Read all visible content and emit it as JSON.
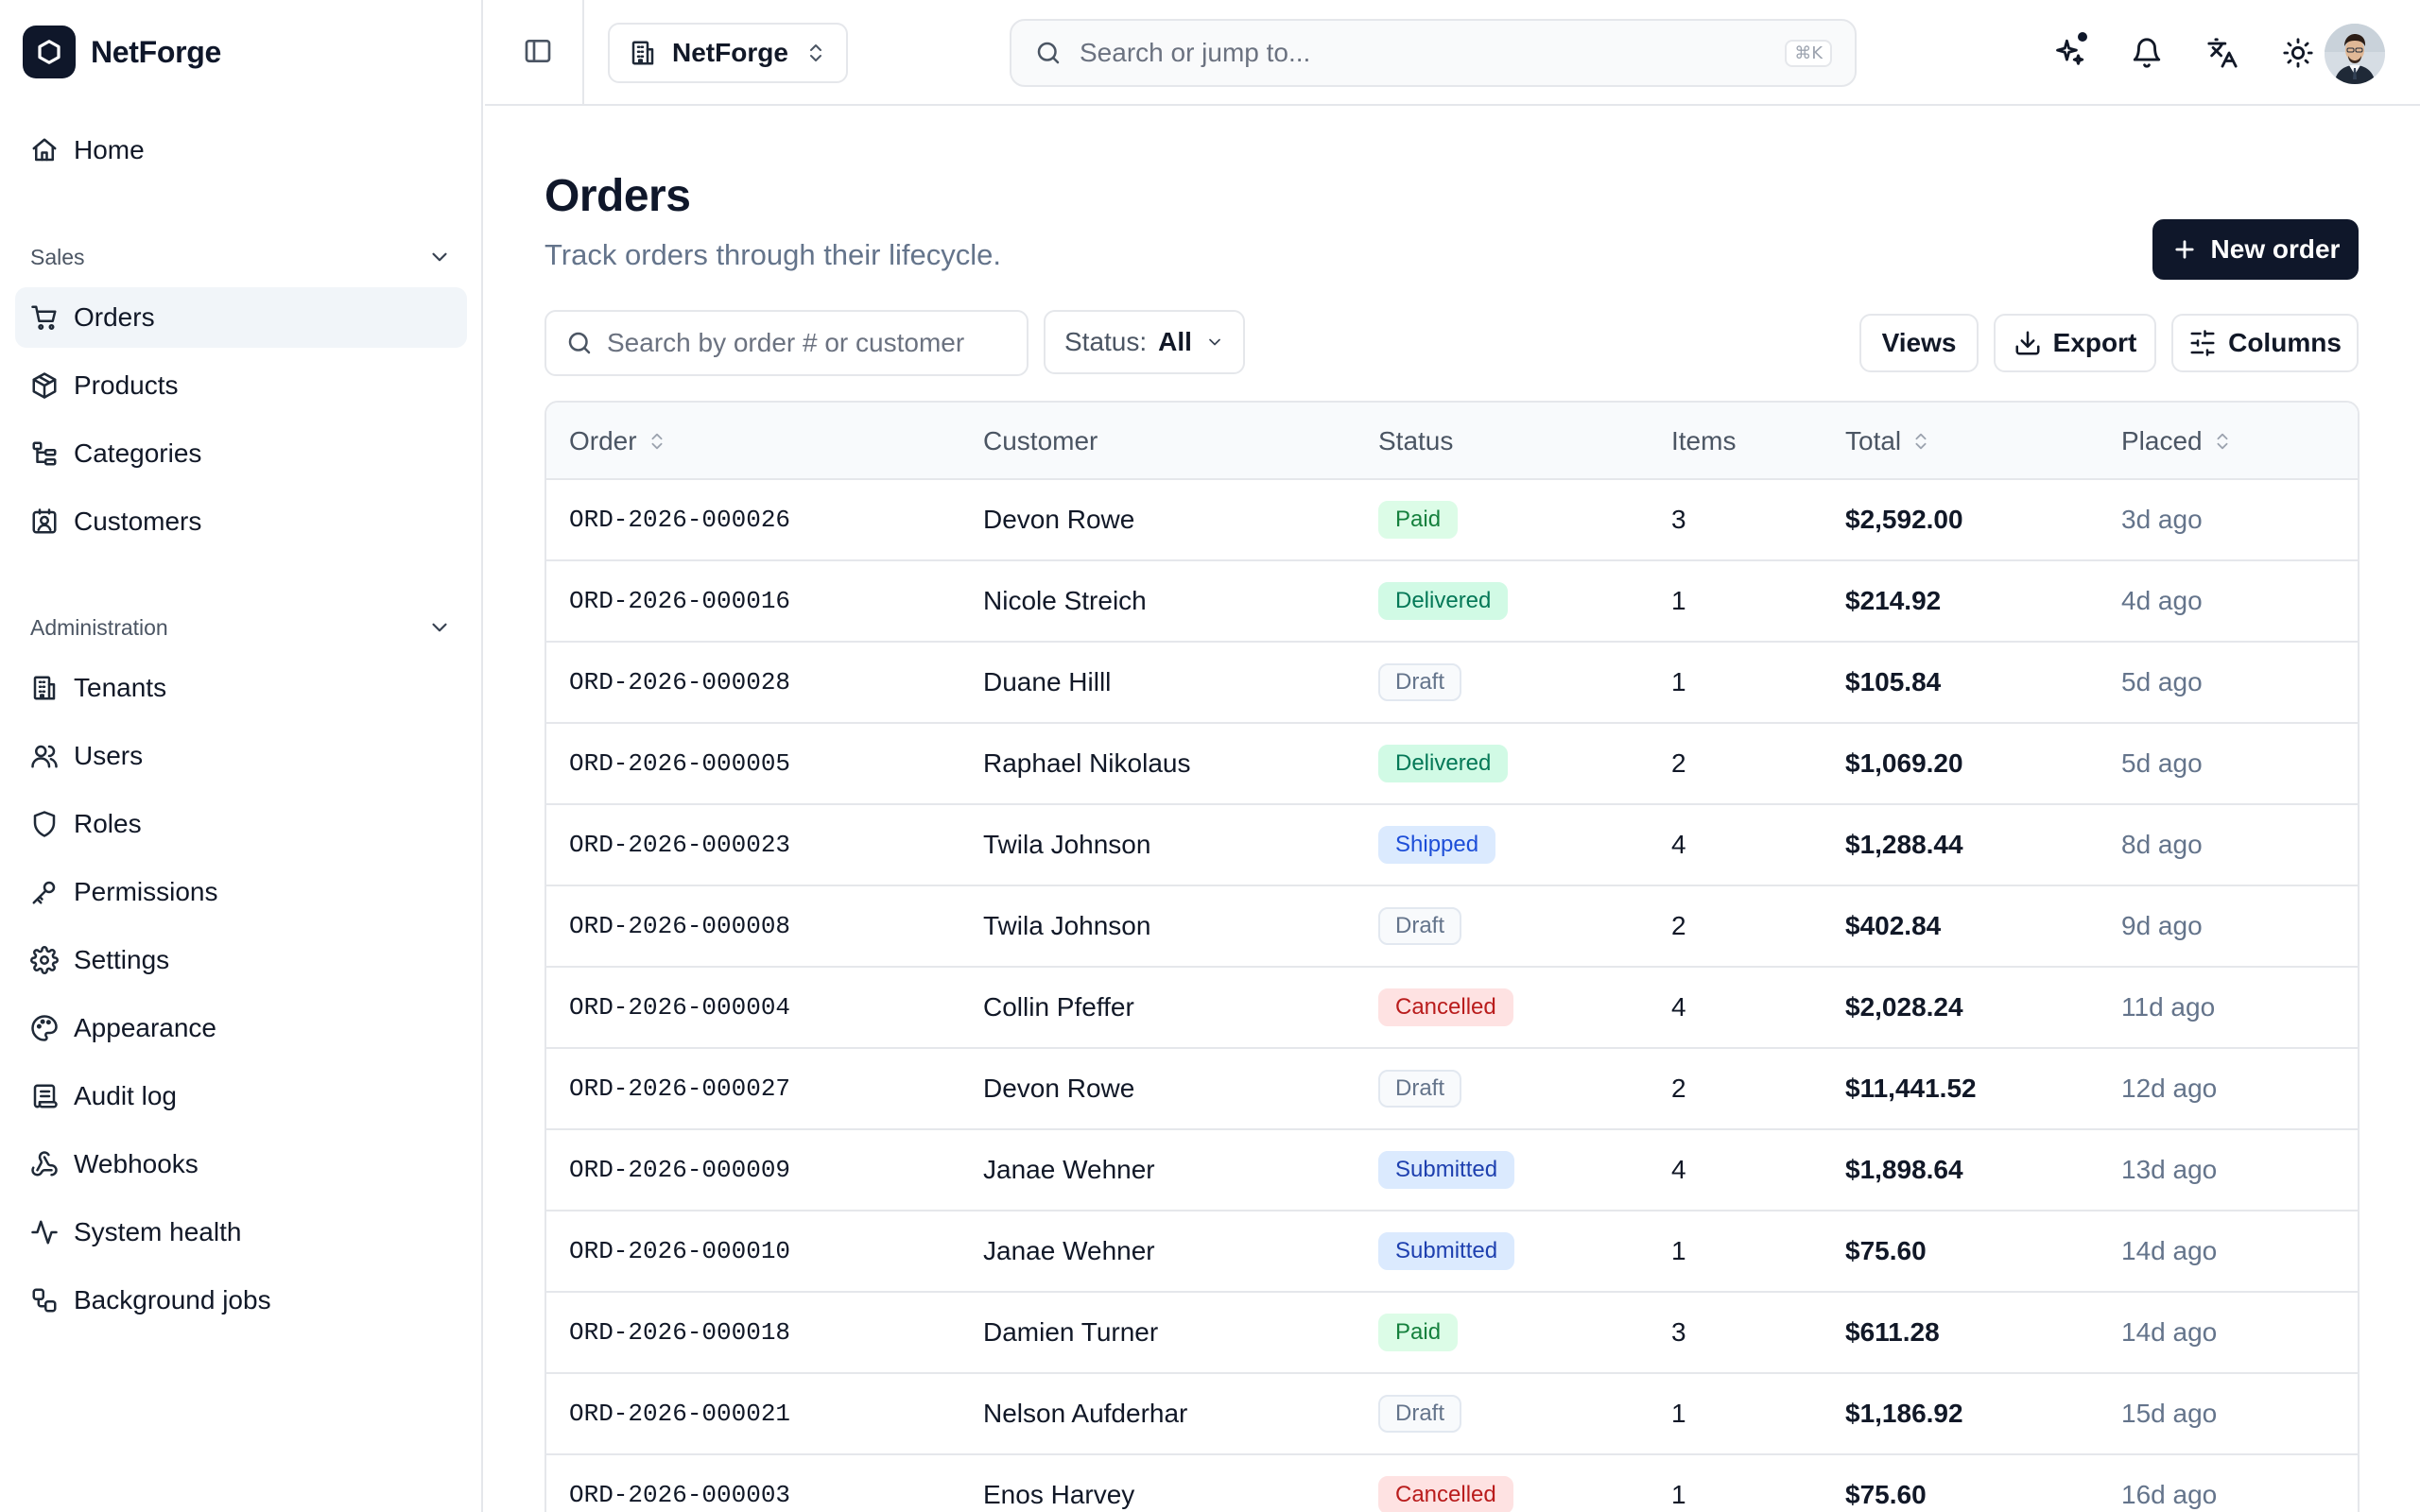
{
  "brand": {
    "name": "NetForge"
  },
  "sidebar": {
    "home": {
      "label": "Home",
      "icon": "home-icon"
    },
    "sales": {
      "title": "Sales",
      "items": [
        {
          "label": "Orders",
          "icon": "cart-icon",
          "active": true
        },
        {
          "label": "Products",
          "icon": "box-icon"
        },
        {
          "label": "Categories",
          "icon": "tree-icon"
        },
        {
          "label": "Customers",
          "icon": "contact-icon"
        }
      ]
    },
    "administration": {
      "title": "Administration",
      "items": [
        {
          "label": "Tenants",
          "icon": "building-icon"
        },
        {
          "label": "Users",
          "icon": "users-icon"
        },
        {
          "label": "Roles",
          "icon": "shield-icon"
        },
        {
          "label": "Permissions",
          "icon": "key-icon"
        },
        {
          "label": "Settings",
          "icon": "gear-icon"
        },
        {
          "label": "Appearance",
          "icon": "palette-icon"
        },
        {
          "label": "Audit log",
          "icon": "scroll-icon"
        },
        {
          "label": "Webhooks",
          "icon": "webhook-icon"
        },
        {
          "label": "System health",
          "icon": "activity-icon"
        },
        {
          "label": "Background jobs",
          "icon": "workflow-icon"
        }
      ]
    }
  },
  "topbar": {
    "tenant": "NetForge",
    "search_placeholder": "Search or jump to...",
    "search_shortcut": "⌘K",
    "icons": [
      "sparkles-icon",
      "bell-icon",
      "languages-icon",
      "sun-icon",
      "avatar"
    ]
  },
  "page": {
    "title": "Orders",
    "subtitle": "Track orders through their lifecycle.",
    "new_button": "New order",
    "search_placeholder": "Search by order # or customer",
    "status_filter_label": "Status:",
    "status_filter_value": "All",
    "views_button": "Views",
    "export_button": "Export",
    "columns_button": "Columns"
  },
  "table": {
    "columns": [
      "Order",
      "Customer",
      "Status",
      "Items",
      "Total",
      "Placed"
    ],
    "rows": [
      {
        "order": "ORD-2026-000026",
        "customer": "Devon Rowe",
        "status": "Paid",
        "items": "3",
        "total": "$2,592.00",
        "placed": "3d ago"
      },
      {
        "order": "ORD-2026-000016",
        "customer": "Nicole Streich",
        "status": "Delivered",
        "items": "1",
        "total": "$214.92",
        "placed": "4d ago"
      },
      {
        "order": "ORD-2026-000028",
        "customer": "Duane Hilll",
        "status": "Draft",
        "items": "1",
        "total": "$105.84",
        "placed": "5d ago"
      },
      {
        "order": "ORD-2026-000005",
        "customer": "Raphael Nikolaus",
        "status": "Delivered",
        "items": "2",
        "total": "$1,069.20",
        "placed": "5d ago"
      },
      {
        "order": "ORD-2026-000023",
        "customer": "Twila Johnson",
        "status": "Shipped",
        "items": "4",
        "total": "$1,288.44",
        "placed": "8d ago"
      },
      {
        "order": "ORD-2026-000008",
        "customer": "Twila Johnson",
        "status": "Draft",
        "items": "2",
        "total": "$402.84",
        "placed": "9d ago"
      },
      {
        "order": "ORD-2026-000004",
        "customer": "Collin Pfeffer",
        "status": "Cancelled",
        "items": "4",
        "total": "$2,028.24",
        "placed": "11d ago"
      },
      {
        "order": "ORD-2026-000027",
        "customer": "Devon Rowe",
        "status": "Draft",
        "items": "2",
        "total": "$11,441.52",
        "placed": "12d ago"
      },
      {
        "order": "ORD-2026-000009",
        "customer": "Janae Wehner",
        "status": "Submitted",
        "items": "4",
        "total": "$1,898.64",
        "placed": "13d ago"
      },
      {
        "order": "ORD-2026-000010",
        "customer": "Janae Wehner",
        "status": "Submitted",
        "items": "1",
        "total": "$75.60",
        "placed": "14d ago"
      },
      {
        "order": "ORD-2026-000018",
        "customer": "Damien Turner",
        "status": "Paid",
        "items": "3",
        "total": "$611.28",
        "placed": "14d ago"
      },
      {
        "order": "ORD-2026-000021",
        "customer": "Nelson Aufderhar",
        "status": "Draft",
        "items": "1",
        "total": "$1,186.92",
        "placed": "15d ago"
      },
      {
        "order": "ORD-2026-000003",
        "customer": "Enos Harvey",
        "status": "Cancelled",
        "items": "1",
        "total": "$75.60",
        "placed": "16d ago"
      }
    ]
  },
  "status_colors": {
    "Paid": {
      "bg": "#dcfce7",
      "fg": "#15803d",
      "border": "#dcfce7"
    },
    "Delivered": {
      "bg": "#d1fae5",
      "fg": "#047857",
      "border": "#d1fae5"
    },
    "Draft": {
      "bg": "#f8fafc",
      "fg": "#64748b",
      "border": "#e2e8f0"
    },
    "Shipped": {
      "bg": "#dbeafe",
      "fg": "#1d4ed8",
      "border": "#dbeafe"
    },
    "Cancelled": {
      "bg": "#fee2e2",
      "fg": "#b91c1c",
      "border": "#fee2e2"
    },
    "Submitted": {
      "bg": "#dbeafe",
      "fg": "#1e40af",
      "border": "#dbeafe"
    }
  },
  "colors": {
    "accent": "#0f172a",
    "border": "#e5e7eb",
    "muted": "#64748b"
  }
}
